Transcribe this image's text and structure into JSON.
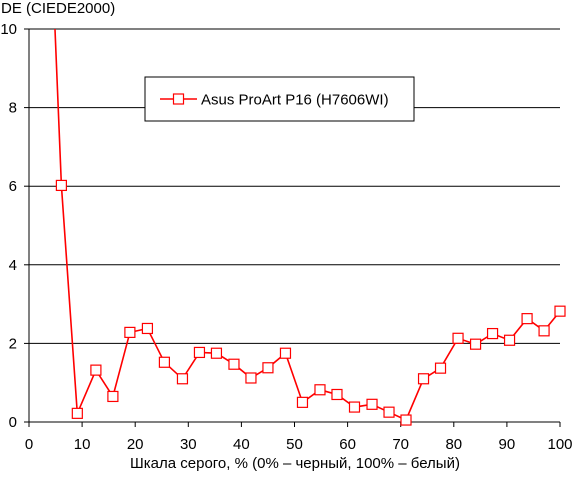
{
  "chart_data": {
    "type": "line",
    "title": "",
    "ylabel": "DE (CIEDE2000)",
    "xlabel": "Шкала серого, % (0% – черный, 100% – белый)",
    "xlim": [
      0,
      100
    ],
    "ylim": [
      0,
      10
    ],
    "x_ticks": [
      "0",
      "10",
      "20",
      "30",
      "40",
      "50",
      "60",
      "70",
      "80",
      "90",
      "100"
    ],
    "y_ticks": [
      "0",
      "2",
      "4",
      "6",
      "8",
      "10"
    ],
    "grid": "horizontal",
    "legend_position": "top-center",
    "colors": {
      "series": "#ff0000",
      "marker_fill": "#ffffff",
      "grid": "#000000"
    },
    "series": [
      {
        "name": "Asus ProArt P16 (H7606WI)",
        "points": [
          [
            4.8,
            10.3
          ],
          [
            6.1,
            6.02
          ],
          [
            9.1,
            0.22
          ],
          [
            12.6,
            1.32
          ],
          [
            15.8,
            0.65
          ],
          [
            19.0,
            2.28
          ],
          [
            22.3,
            2.38
          ],
          [
            25.5,
            1.52
          ],
          [
            28.9,
            1.1
          ],
          [
            32.1,
            1.77
          ],
          [
            35.3,
            1.75
          ],
          [
            38.6,
            1.47
          ],
          [
            41.8,
            1.12
          ],
          [
            45.0,
            1.38
          ],
          [
            48.3,
            1.75
          ],
          [
            51.5,
            0.5
          ],
          [
            54.8,
            0.82
          ],
          [
            58.0,
            0.7
          ],
          [
            61.3,
            0.38
          ],
          [
            64.6,
            0.45
          ],
          [
            67.8,
            0.25
          ],
          [
            71.0,
            0.05
          ],
          [
            74.3,
            1.1
          ],
          [
            77.5,
            1.37
          ],
          [
            80.8,
            2.13
          ],
          [
            84.1,
            1.98
          ],
          [
            87.3,
            2.25
          ],
          [
            90.5,
            2.08
          ],
          [
            93.8,
            2.63
          ],
          [
            97.0,
            2.32
          ],
          [
            100.0,
            2.82
          ]
        ]
      }
    ]
  }
}
